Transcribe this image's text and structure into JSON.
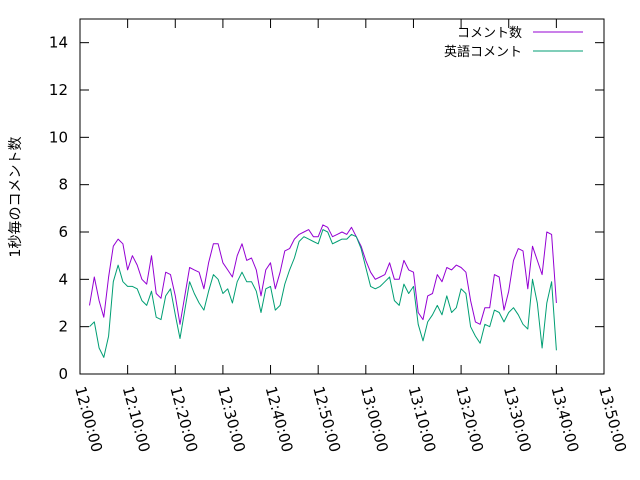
{
  "chart_data": {
    "type": "line",
    "title": "",
    "xlabel": "",
    "ylabel": "1秒毎のコメント数",
    "xlim": [
      "12:00:00",
      "13:50:00"
    ],
    "ylim": [
      0,
      15
    ],
    "x_ticks": [
      "12:00:00",
      "12:10:00",
      "12:20:00",
      "12:30:00",
      "12:40:00",
      "12:50:00",
      "13:00:00",
      "13:10:00",
      "13:20:00",
      "13:30:00",
      "13:40:00",
      "13:50:00"
    ],
    "y_ticks": [
      0,
      2,
      4,
      6,
      8,
      10,
      12,
      14
    ],
    "grid": false,
    "legend_position": "top-right",
    "x": [
      "12:02:00",
      "12:03:00",
      "12:04:00",
      "12:05:00",
      "12:06:00",
      "12:07:00",
      "12:08:00",
      "12:09:00",
      "12:10:00",
      "12:11:00",
      "12:12:00",
      "12:13:00",
      "12:14:00",
      "12:15:00",
      "12:16:00",
      "12:17:00",
      "12:18:00",
      "12:19:00",
      "12:20:00",
      "12:21:00",
      "12:22:00",
      "12:23:00",
      "12:24:00",
      "12:25:00",
      "12:26:00",
      "12:27:00",
      "12:28:00",
      "12:29:00",
      "12:30:00",
      "12:31:00",
      "12:32:00",
      "12:33:00",
      "12:34:00",
      "12:35:00",
      "12:36:00",
      "12:37:00",
      "12:38:00",
      "12:39:00",
      "12:40:00",
      "12:41:00",
      "12:42:00",
      "12:43:00",
      "12:44:00",
      "12:45:00",
      "12:46:00",
      "12:47:00",
      "12:48:00",
      "12:49:00",
      "12:50:00",
      "12:51:00",
      "12:52:00",
      "12:53:00",
      "12:54:00",
      "12:55:00",
      "12:56:00",
      "12:57:00",
      "12:58:00",
      "12:59:00",
      "13:00:00",
      "13:01:00",
      "13:02:00",
      "13:03:00",
      "13:04:00",
      "13:05:00",
      "13:06:00",
      "13:07:00",
      "13:08:00",
      "13:09:00",
      "13:10:00",
      "13:11:00",
      "13:12:00",
      "13:13:00",
      "13:14:00",
      "13:15:00",
      "13:16:00",
      "13:17:00",
      "13:18:00",
      "13:19:00",
      "13:20:00",
      "13:21:00",
      "13:22:00",
      "13:23:00",
      "13:24:00",
      "13:25:00",
      "13:26:00",
      "13:27:00",
      "13:28:00",
      "13:29:00",
      "13:30:00",
      "13:31:00",
      "13:32:00",
      "13:33:00",
      "13:34:00",
      "13:35:00",
      "13:36:00",
      "13:37:00",
      "13:38:00",
      "13:39:00",
      "13:40:00"
    ],
    "series": [
      {
        "name": "コメント数",
        "color": "#9400d3",
        "values": [
          2.9,
          4.1,
          3.1,
          2.4,
          4.1,
          5.4,
          5.7,
          5.5,
          4.4,
          5.0,
          4.6,
          4.0,
          3.8,
          5.0,
          3.4,
          3.2,
          4.3,
          4.2,
          3.3,
          2.1,
          3.3,
          4.5,
          4.4,
          4.3,
          3.6,
          4.7,
          5.5,
          5.5,
          4.7,
          4.4,
          4.1,
          5.0,
          5.5,
          4.8,
          4.9,
          4.4,
          3.3,
          4.4,
          4.7,
          3.6,
          4.3,
          5.2,
          5.3,
          5.7,
          5.9,
          6.0,
          6.1,
          5.8,
          5.8,
          6.3,
          6.2,
          5.8,
          5.9,
          6.0,
          5.9,
          6.2,
          5.8,
          5.4,
          4.8,
          4.3,
          4.0,
          4.1,
          4.2,
          4.7,
          4.0,
          4.0,
          4.8,
          4.4,
          4.3,
          2.6,
          2.3,
          3.3,
          3.4,
          4.2,
          3.9,
          4.5,
          4.4,
          4.6,
          4.5,
          4.3,
          3.1,
          2.2,
          2.1,
          2.8,
          2.8,
          4.2,
          4.1,
          2.7,
          3.5,
          4.8,
          5.3,
          5.2,
          3.6,
          5.4,
          4.8,
          4.2,
          6.0,
          5.9,
          3.0
        ]
      },
      {
        "name": "英語コメント",
        "color": "#009e73",
        "values": [
          2.0,
          2.2,
          1.1,
          0.7,
          1.6,
          3.9,
          4.6,
          3.9,
          3.7,
          3.7,
          3.6,
          3.1,
          2.9,
          3.5,
          2.4,
          2.3,
          3.3,
          3.6,
          2.5,
          1.5,
          2.7,
          3.9,
          3.4,
          3.0,
          2.7,
          3.5,
          4.2,
          4.0,
          3.4,
          3.6,
          3.0,
          3.9,
          4.3,
          3.9,
          3.9,
          3.5,
          2.6,
          3.6,
          3.7,
          2.7,
          2.9,
          3.8,
          4.4,
          4.9,
          5.6,
          5.8,
          5.7,
          5.6,
          5.5,
          6.1,
          6.0,
          5.5,
          5.6,
          5.7,
          5.7,
          5.9,
          5.8,
          5.3,
          4.5,
          3.7,
          3.6,
          3.7,
          3.9,
          4.1,
          3.1,
          2.9,
          3.8,
          3.4,
          3.7,
          2.1,
          1.4,
          2.2,
          2.5,
          2.9,
          2.5,
          3.3,
          2.6,
          2.8,
          3.6,
          3.4,
          2.0,
          1.6,
          1.3,
          2.1,
          2.0,
          2.7,
          2.6,
          2.2,
          2.6,
          2.8,
          2.5,
          2.1,
          1.9,
          4.0,
          3.0,
          1.1,
          3.0,
          3.9,
          1.0
        ]
      }
    ]
  }
}
